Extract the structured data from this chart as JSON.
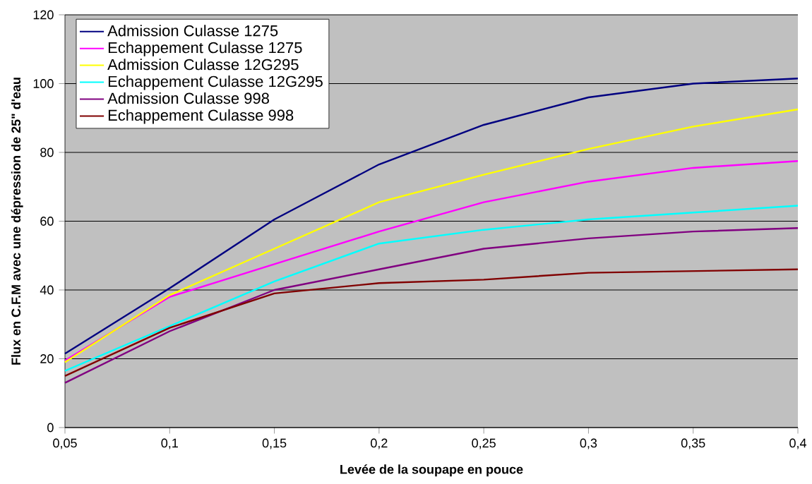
{
  "chart_data": {
    "type": "line",
    "xlabel": "Levée de la soupape en pouce",
    "ylabel": "Flux en C.F.M avec  une dépression de 25\" d'eau",
    "categories": [
      "0,05",
      "0,1",
      "0,15",
      "0,2",
      "0,25",
      "0,3",
      "0,35",
      "0,4"
    ],
    "series": [
      {
        "name": "Admission Culasse 1275",
        "color": "#000080",
        "values": [
          21.5,
          40.5,
          60.5,
          76.5,
          88,
          96,
          100,
          101.5
        ]
      },
      {
        "name": "Echappement Culasse 1275",
        "color": "#ff00ff",
        "values": [
          19.5,
          38,
          47.5,
          57,
          65.5,
          71.5,
          75.5,
          77.5
        ]
      },
      {
        "name": "Admission  Culasse 12G295",
        "color": "#ffff00",
        "values": [
          19,
          38.5,
          52,
          65.5,
          73.5,
          81,
          87.5,
          92.5
        ]
      },
      {
        "name": "Echappement Culasse 12G295",
        "color": "#00ffff",
        "values": [
          16.5,
          29.5,
          42.5,
          53.5,
          57.5,
          60.5,
          62.5,
          64.5
        ]
      },
      {
        "name": "Admission Culasse 998",
        "color": "#800080",
        "values": [
          13,
          28,
          40,
          46,
          52,
          55,
          57,
          58
        ]
      },
      {
        "name": "Echappement Culasse 998",
        "color": "#800000",
        "values": [
          15,
          29,
          39,
          42,
          43,
          45,
          45.5,
          46
        ]
      }
    ],
    "ylim": [
      0,
      120
    ],
    "yticks": [
      0,
      20,
      40,
      60,
      80,
      100,
      120
    ],
    "grid": "y",
    "legend": "top left",
    "marker": "none",
    "line_style": "solid"
  }
}
